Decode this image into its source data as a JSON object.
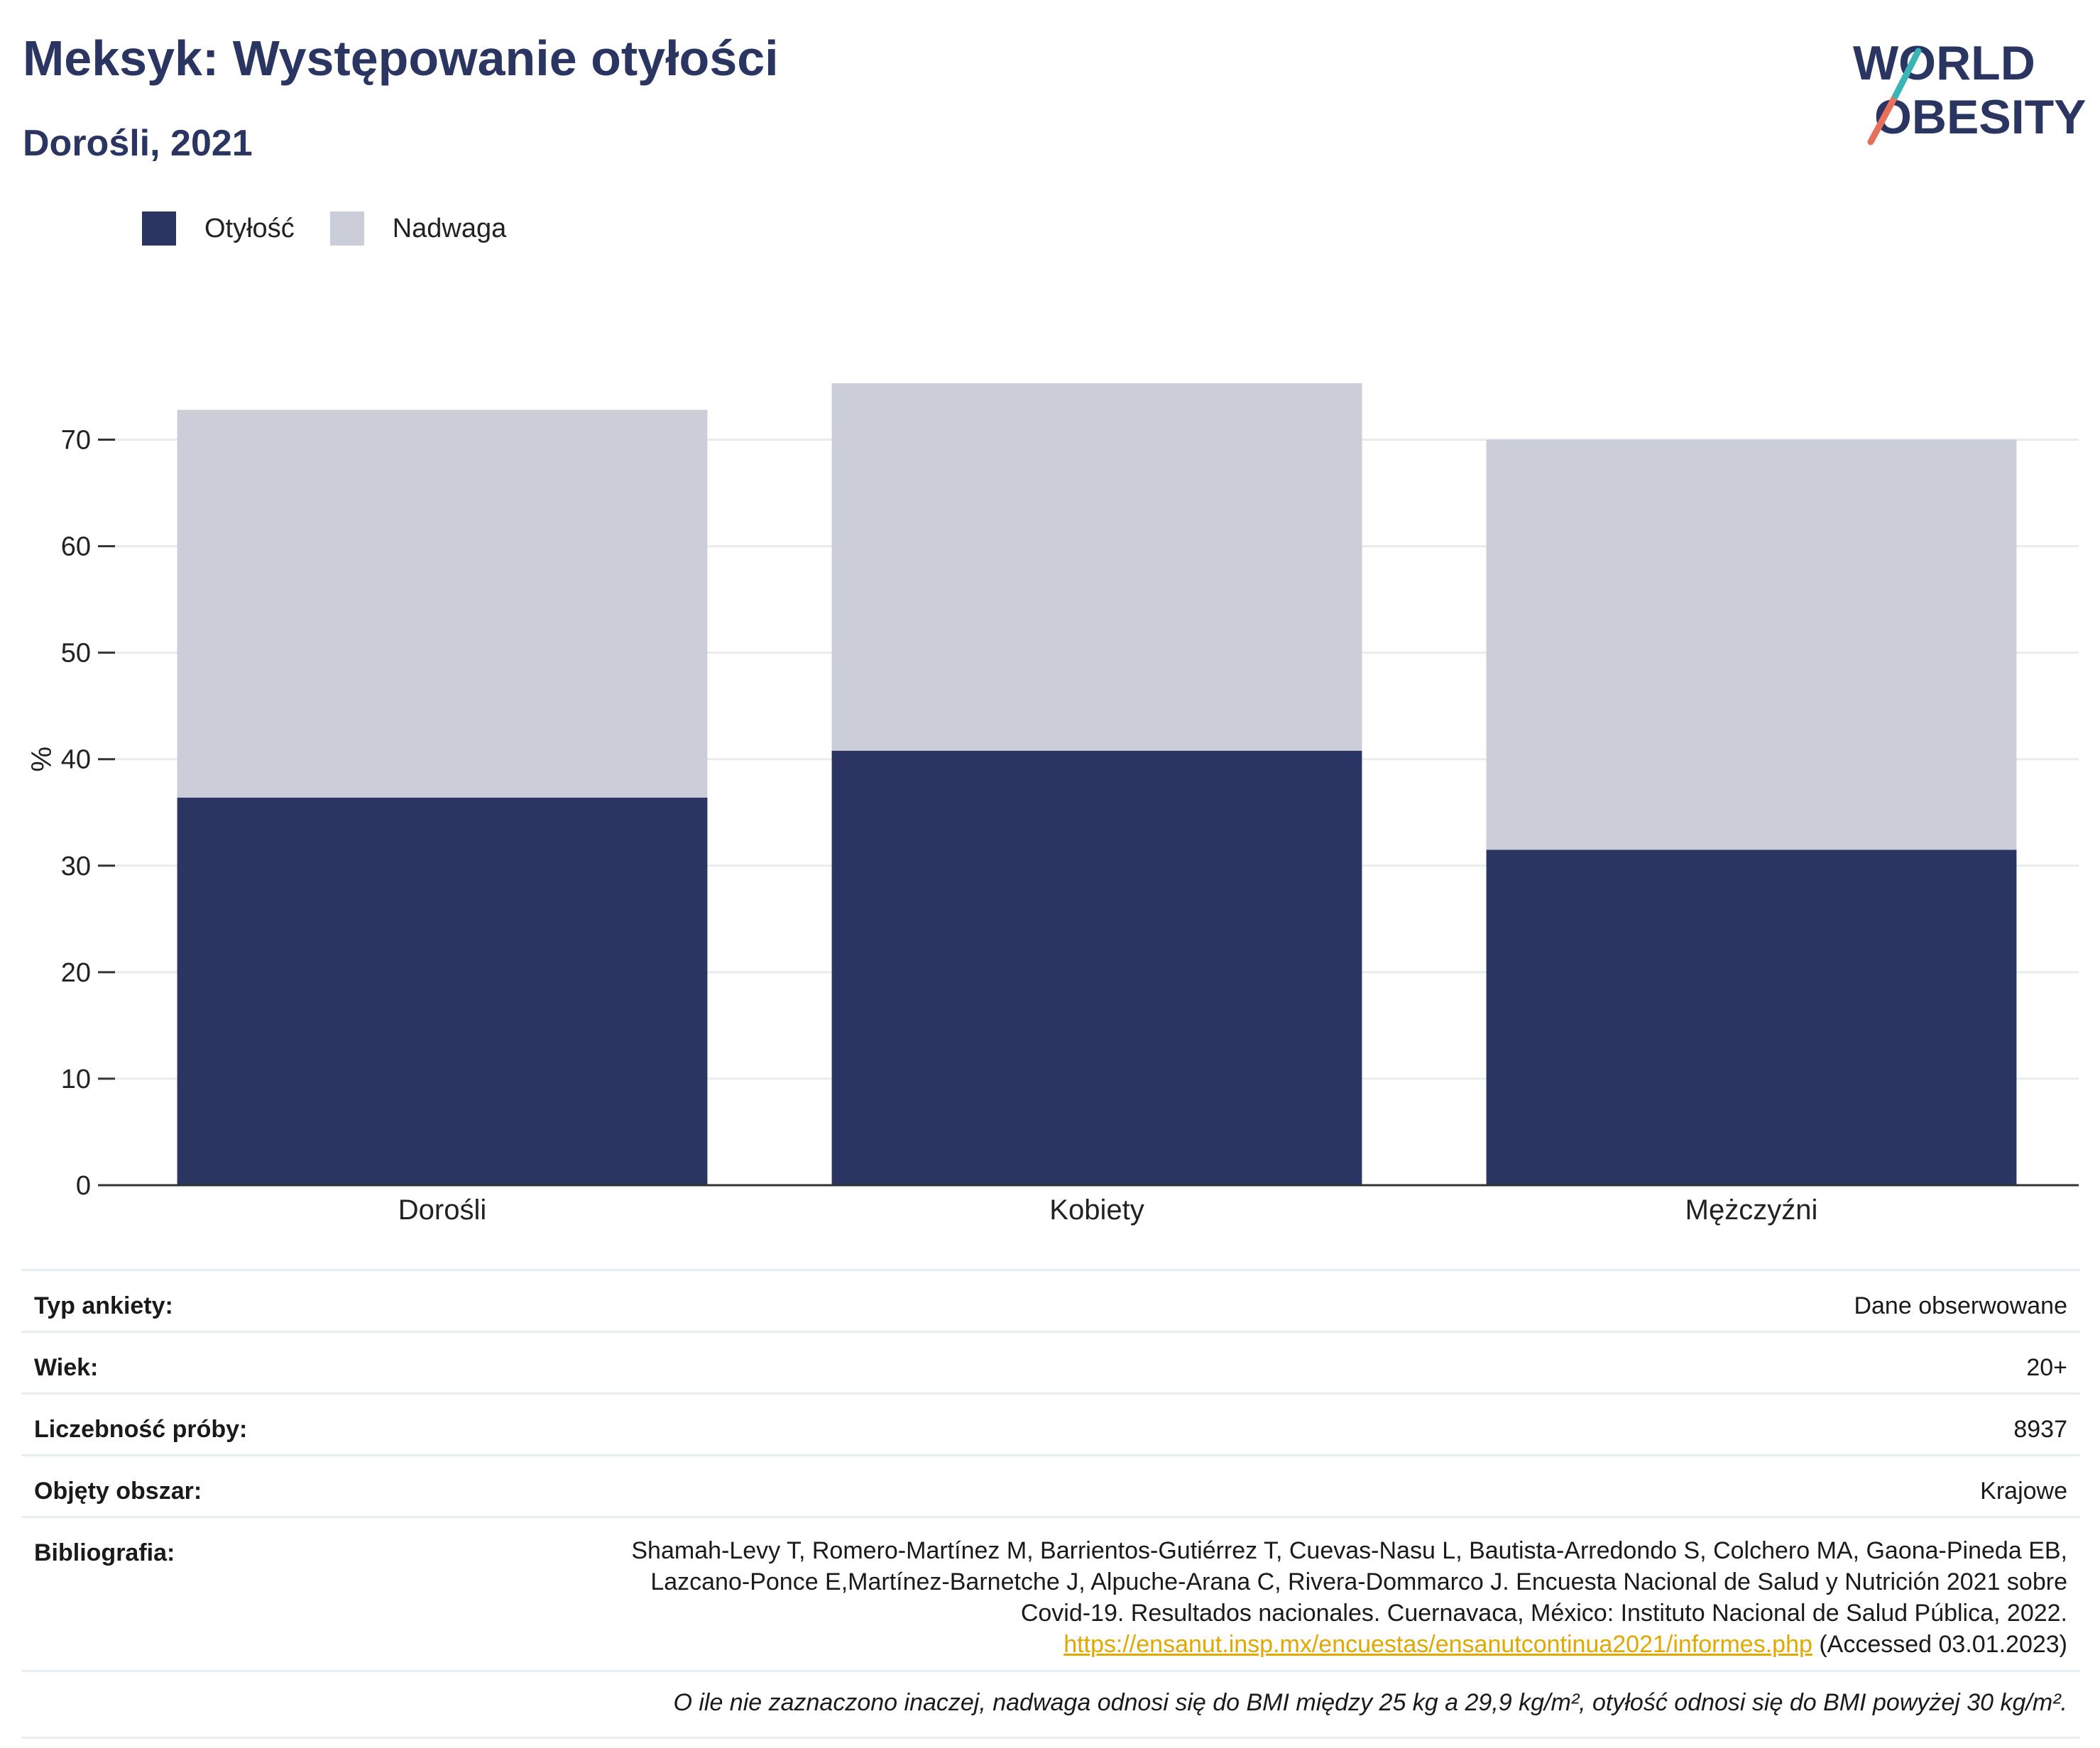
{
  "header": {
    "title": "Meksyk: Występowanie otyłości",
    "subtitle": "Dorośli, 2021"
  },
  "logo": {
    "line1": "WORLD",
    "line2": "OBESITY",
    "colors": {
      "text": "#2a3562",
      "teal": "#39b5b5",
      "coral": "#e8705a"
    }
  },
  "chart_data": {
    "type": "bar",
    "stacked": true,
    "categories": [
      "Dorośli",
      "Kobiety",
      "Mężczyźni"
    ],
    "series": [
      {
        "name": "Otyłość",
        "values": [
          36.4,
          40.8,
          31.5
        ],
        "color": "#2a3562"
      },
      {
        "name": "Nadwaga",
        "values": [
          36.4,
          34.5,
          38.5
        ],
        "color": "#cbcdd8"
      }
    ],
    "ylabel": "%",
    "xlabel": "",
    "ylim": [
      0,
      75.3
    ],
    "yticks": [
      0,
      10,
      20,
      30,
      40,
      50,
      60,
      70
    ],
    "grid": true,
    "legend_position": "top-left"
  },
  "meta": {
    "rows": [
      {
        "key": "Typ ankiety:",
        "value": "Dane obserwowane"
      },
      {
        "key": "Wiek:",
        "value": "20+"
      },
      {
        "key": "Liczebność próby:",
        "value": "8937"
      },
      {
        "key": "Objęty obszar:",
        "value": "Krajowe"
      }
    ],
    "bibliography": {
      "key": "Bibliografia:",
      "line1": "Shamah-Levy T, Romero-Martínez M, Barrientos-Gutiérrez T, Cuevas-Nasu L, Bautista-Arredondo S, Colchero MA, Gaona-Pineda EB,",
      "line2": "Lazcano-Ponce E,Martínez-Barnetche J, Alpuche-Arana C, Rivera-Dommarco J. Encuesta Nacional de Salud y Nutrición 2021 sobre",
      "line3": "Covid-19. Resultados nacionales. Cuernavaca, México: Instituto Nacional de Salud Pública, 2022.",
      "link": "https://ensanut.insp.mx/encuestas/ensanutcontinua2021/informes.php",
      "accessed": " (Accessed 03.01.2023)"
    },
    "note": "O ile nie zaznaczono inaczej, nadwaga odnosi się do BMI między 25 kg a 29,9 kg/m², otyłość odnosi się do BMI powyżej 30 kg/m²."
  }
}
